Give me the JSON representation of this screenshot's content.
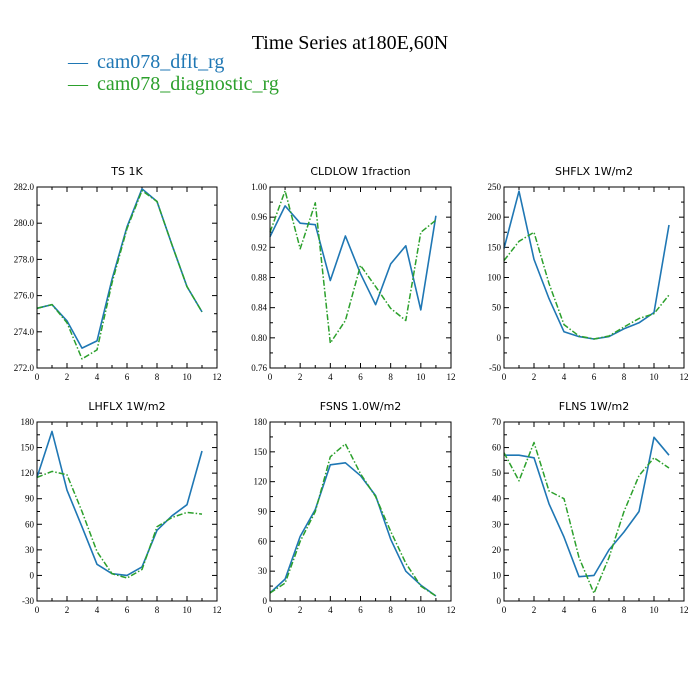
{
  "title": "Time Series at180E,60N",
  "legend": [
    {
      "dash": "—",
      "label": "cam078_dflt_rg"
    },
    {
      "dash": "—",
      "label": "cam078_diagnostic_rg"
    }
  ],
  "colors": {
    "series_a": "#1f77b4",
    "series_b": "#2ca02c"
  },
  "chart_data": [
    {
      "type": "line",
      "title": "TS   1K",
      "x": [
        0,
        1,
        2,
        3,
        4,
        5,
        6,
        7,
        8,
        9,
        10,
        11
      ],
      "xlim": [
        0,
        12
      ],
      "xticks": [
        0,
        2,
        4,
        6,
        8,
        10,
        12
      ],
      "ylim": [
        272.0,
        282.0
      ],
      "yticks": [
        "272.0",
        "274.0",
        "276.0",
        "278.0",
        "280.0",
        "282.0"
      ],
      "series": [
        {
          "values": [
            275.3,
            275.5,
            274.6,
            273.1,
            273.5,
            276.9,
            279.8,
            281.9,
            281.2,
            278.8,
            276.5,
            275.1
          ]
        },
        {
          "values": [
            275.3,
            275.5,
            274.5,
            272.5,
            273.0,
            276.7,
            279.7,
            281.8,
            281.2,
            278.8,
            276.5,
            275.1
          ]
        }
      ]
    },
    {
      "type": "line",
      "title": "CLDLOW   1fraction",
      "x": [
        0,
        1,
        2,
        3,
        4,
        5,
        6,
        7,
        8,
        9,
        10,
        11
      ],
      "xlim": [
        0,
        12
      ],
      "xticks": [
        0,
        2,
        4,
        6,
        8,
        10,
        12
      ],
      "ylim": [
        0.76,
        1.0
      ],
      "yticks": [
        "0.76",
        "0.80",
        "0.84",
        "0.88",
        "0.92",
        "0.96",
        "1.00"
      ],
      "series": [
        {
          "values": [
            0.934,
            0.975,
            0.952,
            0.95,
            0.876,
            0.935,
            0.885,
            0.844,
            0.898,
            0.922,
            0.837,
            0.962
          ]
        },
        {
          "values": [
            0.94,
            0.995,
            0.918,
            0.979,
            0.793,
            0.823,
            0.896,
            0.868,
            0.839,
            0.823,
            0.94,
            0.956
          ]
        }
      ]
    },
    {
      "type": "line",
      "title": "SHFLX   1W/m2",
      "x": [
        0,
        1,
        2,
        3,
        4,
        5,
        6,
        7,
        8,
        9,
        10,
        11
      ],
      "xlim": [
        0,
        12
      ],
      "xticks": [
        0,
        2,
        4,
        6,
        8,
        10,
        12
      ],
      "ylim": [
        -50,
        250
      ],
      "yticks": [
        "-50",
        "0",
        "50",
        "100",
        "150",
        "200",
        "250"
      ],
      "series": [
        {
          "values": [
            148,
            243,
            130,
            65,
            10,
            2,
            -2,
            2,
            15,
            25,
            42,
            187
          ]
        },
        {
          "values": [
            128,
            160,
            175,
            90,
            22,
            3,
            -2,
            3,
            18,
            32,
            40,
            71
          ]
        }
      ]
    },
    {
      "type": "line",
      "title": "LHFLX   1W/m2",
      "x": [
        0,
        1,
        2,
        3,
        4,
        5,
        6,
        7,
        8,
        9,
        10,
        11
      ],
      "xlim": [
        0,
        12
      ],
      "xticks": [
        0,
        2,
        4,
        6,
        8,
        10,
        12
      ],
      "ylim": [
        -30,
        180
      ],
      "yticks": [
        "-30",
        "0",
        "30",
        "60",
        "90",
        "120",
        "150",
        "180"
      ],
      "series": [
        {
          "values": [
            115,
            169,
            100,
            57,
            13,
            2,
            0,
            10,
            53,
            70,
            83,
            146
          ]
        },
        {
          "values": [
            115,
            122,
            118,
            75,
            28,
            2,
            -3,
            7,
            57,
            68,
            74,
            72
          ]
        }
      ]
    },
    {
      "type": "line",
      "title": "FSNS   1.0W/m2",
      "x": [
        0,
        1,
        2,
        3,
        4,
        5,
        6,
        7,
        8,
        9,
        10,
        11
      ],
      "xlim": [
        0,
        12
      ],
      "xticks": [
        0,
        2,
        4,
        6,
        8,
        10,
        12
      ],
      "ylim": [
        0,
        180
      ],
      "yticks": [
        "0",
        "30",
        "60",
        "90",
        "120",
        "150",
        "180"
      ],
      "series": [
        {
          "values": [
            8,
            22,
            65,
            92,
            137,
            139,
            126,
            106,
            62,
            30,
            16,
            5
          ]
        },
        {
          "values": [
            8,
            18,
            60,
            90,
            145,
            158,
            128,
            105,
            70,
            38,
            15,
            5
          ]
        }
      ]
    },
    {
      "type": "line",
      "title": "FLNS   1W/m2",
      "x": [
        0,
        1,
        2,
        3,
        4,
        5,
        6,
        7,
        8,
        9,
        10,
        11
      ],
      "xlim": [
        0,
        12
      ],
      "xticks": [
        0,
        2,
        4,
        6,
        8,
        10,
        12
      ],
      "ylim": [
        0,
        70
      ],
      "yticks": [
        "0",
        "10",
        "20",
        "30",
        "40",
        "50",
        "60",
        "70"
      ],
      "series": [
        {
          "values": [
            57,
            57,
            56,
            38,
            25,
            9.5,
            10,
            20,
            27,
            35,
            64,
            57
          ]
        },
        {
          "values": [
            58,
            47,
            62,
            43,
            40,
            17,
            3,
            17,
            35,
            49,
            56,
            52
          ]
        }
      ]
    }
  ]
}
